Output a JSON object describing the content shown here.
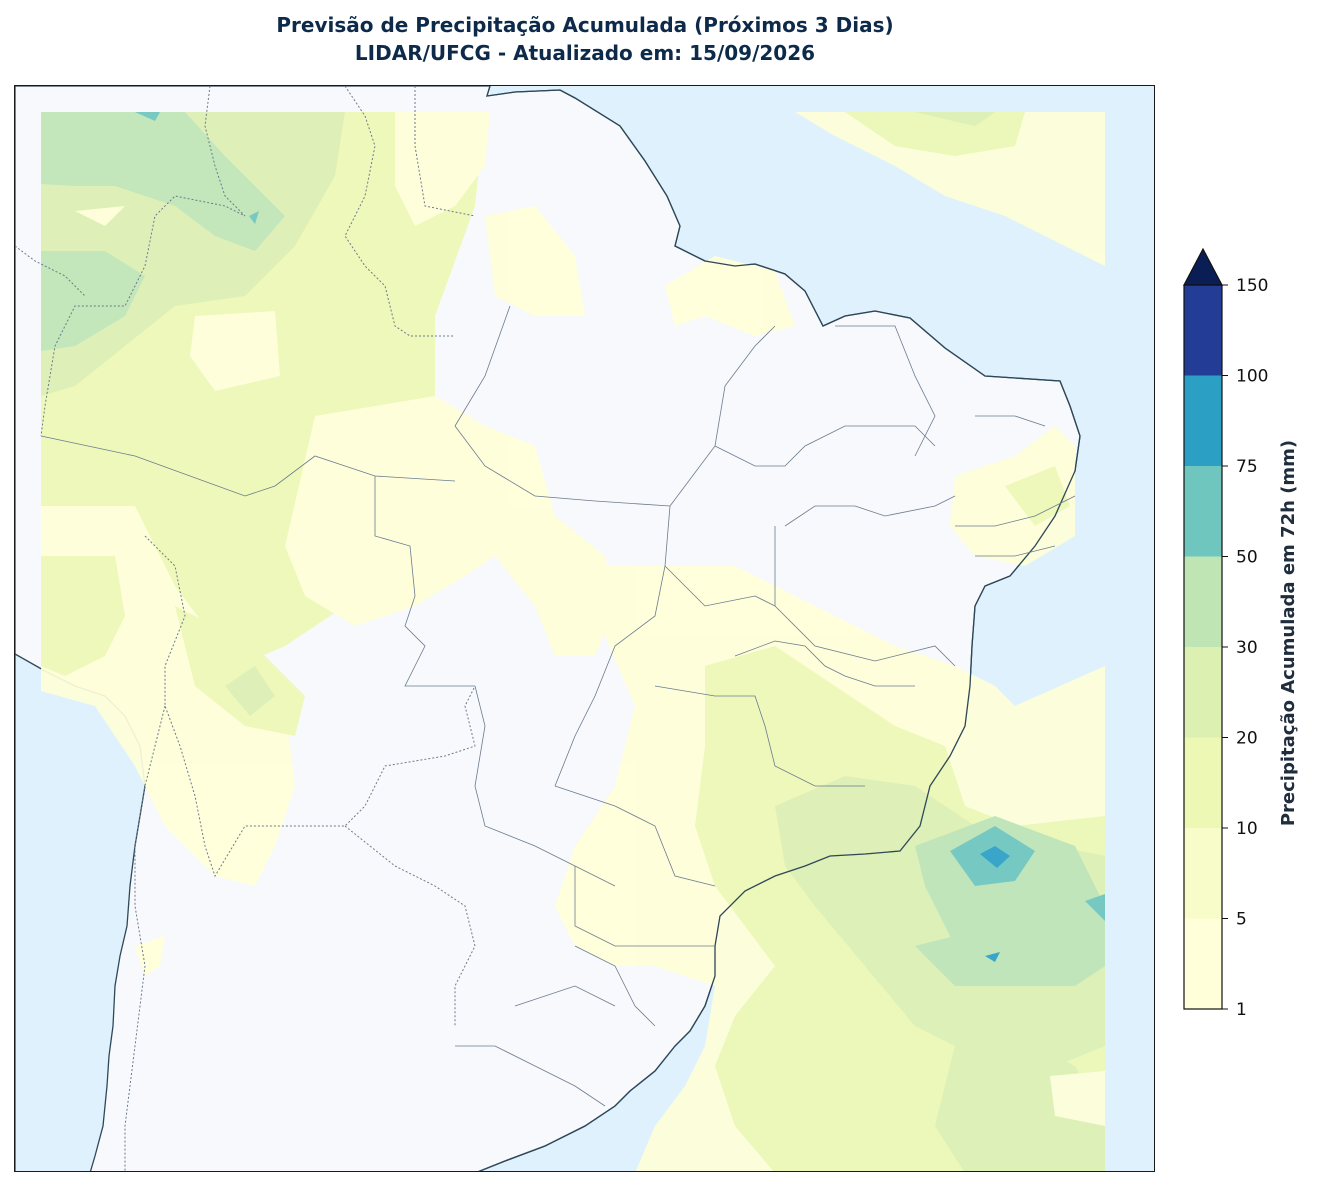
{
  "header": {
    "title_line1": "Previsão de Precipitação Acumulada (Próximos 3 Dias)",
    "title_line2": "LIDAR/UFCG - Atualizado em: 15/09/2026"
  },
  "colorbar": {
    "label": "Precipitação Acumulada em 72h (mm)",
    "extend": "max",
    "levels": [
      {
        "value": "1",
        "color": "#ffffd9"
      },
      {
        "value": "5",
        "color": "#f8fcc8"
      },
      {
        "value": "10",
        "color": "#eef8b5"
      },
      {
        "value": "20",
        "color": "#dcf0b2"
      },
      {
        "value": "30",
        "color": "#bfe5b5"
      },
      {
        "value": "50",
        "color": "#6ec6be"
      },
      {
        "value": "75",
        "color": "#2c9fc5"
      },
      {
        "value": "100",
        "color": "#233d96"
      },
      {
        "value": "150",
        "color": "#0b1d55"
      }
    ]
  },
  "map_colors": {
    "ocean": "#dff1fd",
    "land": "#f7f9fc",
    "coastline": "#2f4858",
    "borders": "#6b7b8e"
  }
}
